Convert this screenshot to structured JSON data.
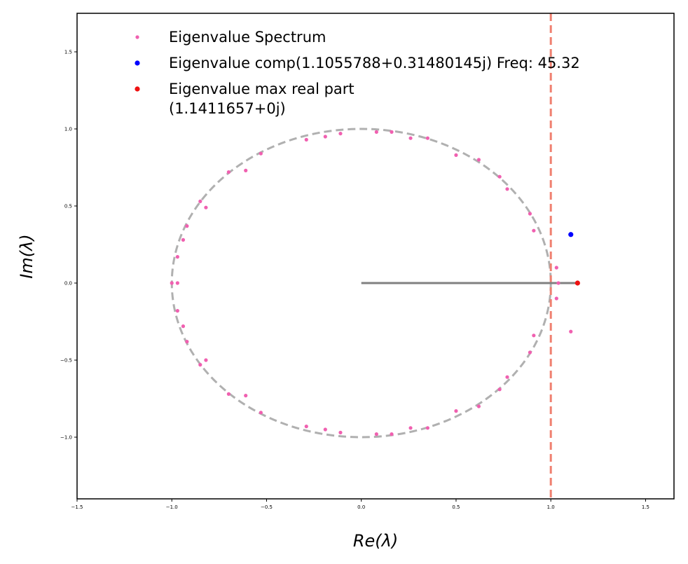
{
  "chart_data": {
    "type": "scatter",
    "xlabel": "Re(λ)",
    "ylabel": "Im(λ)",
    "xlim": [
      -1.5,
      1.65
    ],
    "ylim": [
      -1.4,
      1.75
    ],
    "xticks": [
      -1.5,
      -1.0,
      -0.5,
      0.0,
      0.5,
      1.0,
      1.5
    ],
    "xtick_labels": [
      "−1.5",
      "−1.0",
      "−0.5",
      "0.0",
      "0.5",
      "1.0",
      "1.5"
    ],
    "yticks": [
      -1.0,
      -0.5,
      0.0,
      0.5,
      1.0,
      1.5
    ],
    "ytick_labels": [
      "−1.0",
      "−0.5",
      "0.0",
      "0.5",
      "1.0",
      "1.5"
    ],
    "grid": false,
    "legend_position": "top-left",
    "unit_circle": {
      "center": [
        0,
        0
      ],
      "radius": 1,
      "style": "dashed",
      "color": "#b0b0b0"
    },
    "vertical_line": {
      "x": 1.0,
      "style": "dashed",
      "color": "#f08070"
    },
    "radius_line": {
      "from": [
        0,
        0
      ],
      "to": [
        1.1411657,
        0
      ],
      "color": "#808080"
    },
    "series": [
      {
        "name": "Eigenvalue Spectrum",
        "color": "#f060b0",
        "points": [
          [
            -1.0,
            0.0
          ],
          [
            -0.97,
            0.0
          ],
          [
            -0.97,
            0.17
          ],
          [
            -0.97,
            -0.18
          ],
          [
            -0.94,
            0.28
          ],
          [
            -0.94,
            -0.28
          ],
          [
            -0.92,
            0.37
          ],
          [
            -0.92,
            -0.38
          ],
          [
            -0.85,
            0.53
          ],
          [
            -0.85,
            -0.53
          ],
          [
            -0.82,
            0.49
          ],
          [
            -0.82,
            -0.5
          ],
          [
            -0.7,
            0.72
          ],
          [
            -0.7,
            -0.72
          ],
          [
            -0.61,
            0.73
          ],
          [
            -0.61,
            -0.73
          ],
          [
            -0.53,
            0.84
          ],
          [
            -0.53,
            -0.84
          ],
          [
            -0.29,
            0.93
          ],
          [
            -0.29,
            -0.93
          ],
          [
            -0.19,
            0.95
          ],
          [
            -0.19,
            -0.95
          ],
          [
            -0.11,
            0.97
          ],
          [
            -0.11,
            -0.97
          ],
          [
            0.08,
            0.98
          ],
          [
            0.08,
            -0.98
          ],
          [
            0.16,
            0.98
          ],
          [
            0.16,
            -0.98
          ],
          [
            0.26,
            0.94
          ],
          [
            0.26,
            -0.94
          ],
          [
            0.35,
            0.94
          ],
          [
            0.35,
            -0.94
          ],
          [
            0.5,
            0.83
          ],
          [
            0.5,
            -0.83
          ],
          [
            0.62,
            0.8
          ],
          [
            0.62,
            -0.8
          ],
          [
            0.73,
            0.69
          ],
          [
            0.73,
            -0.69
          ],
          [
            0.77,
            0.61
          ],
          [
            0.77,
            -0.61
          ],
          [
            0.89,
            0.45
          ],
          [
            0.89,
            -0.45
          ],
          [
            0.91,
            0.34
          ],
          [
            0.91,
            -0.34
          ],
          [
            1.03,
            0.1
          ],
          [
            1.03,
            -0.1
          ],
          [
            1.04,
            0.0
          ],
          [
            1.1055788,
            -0.3148
          ]
        ]
      },
      {
        "name": "Eigenvalue comp(1.1055788+0.31480145j) Freq: 45.32",
        "color": "#0000ff",
        "points": [
          [
            1.1055788,
            0.31480145
          ]
        ]
      },
      {
        "name": "Eigenvalue max real part\n(1.1411657+0j)",
        "color": "#ee1111",
        "points": [
          [
            1.1411657,
            0.0
          ]
        ]
      }
    ]
  }
}
